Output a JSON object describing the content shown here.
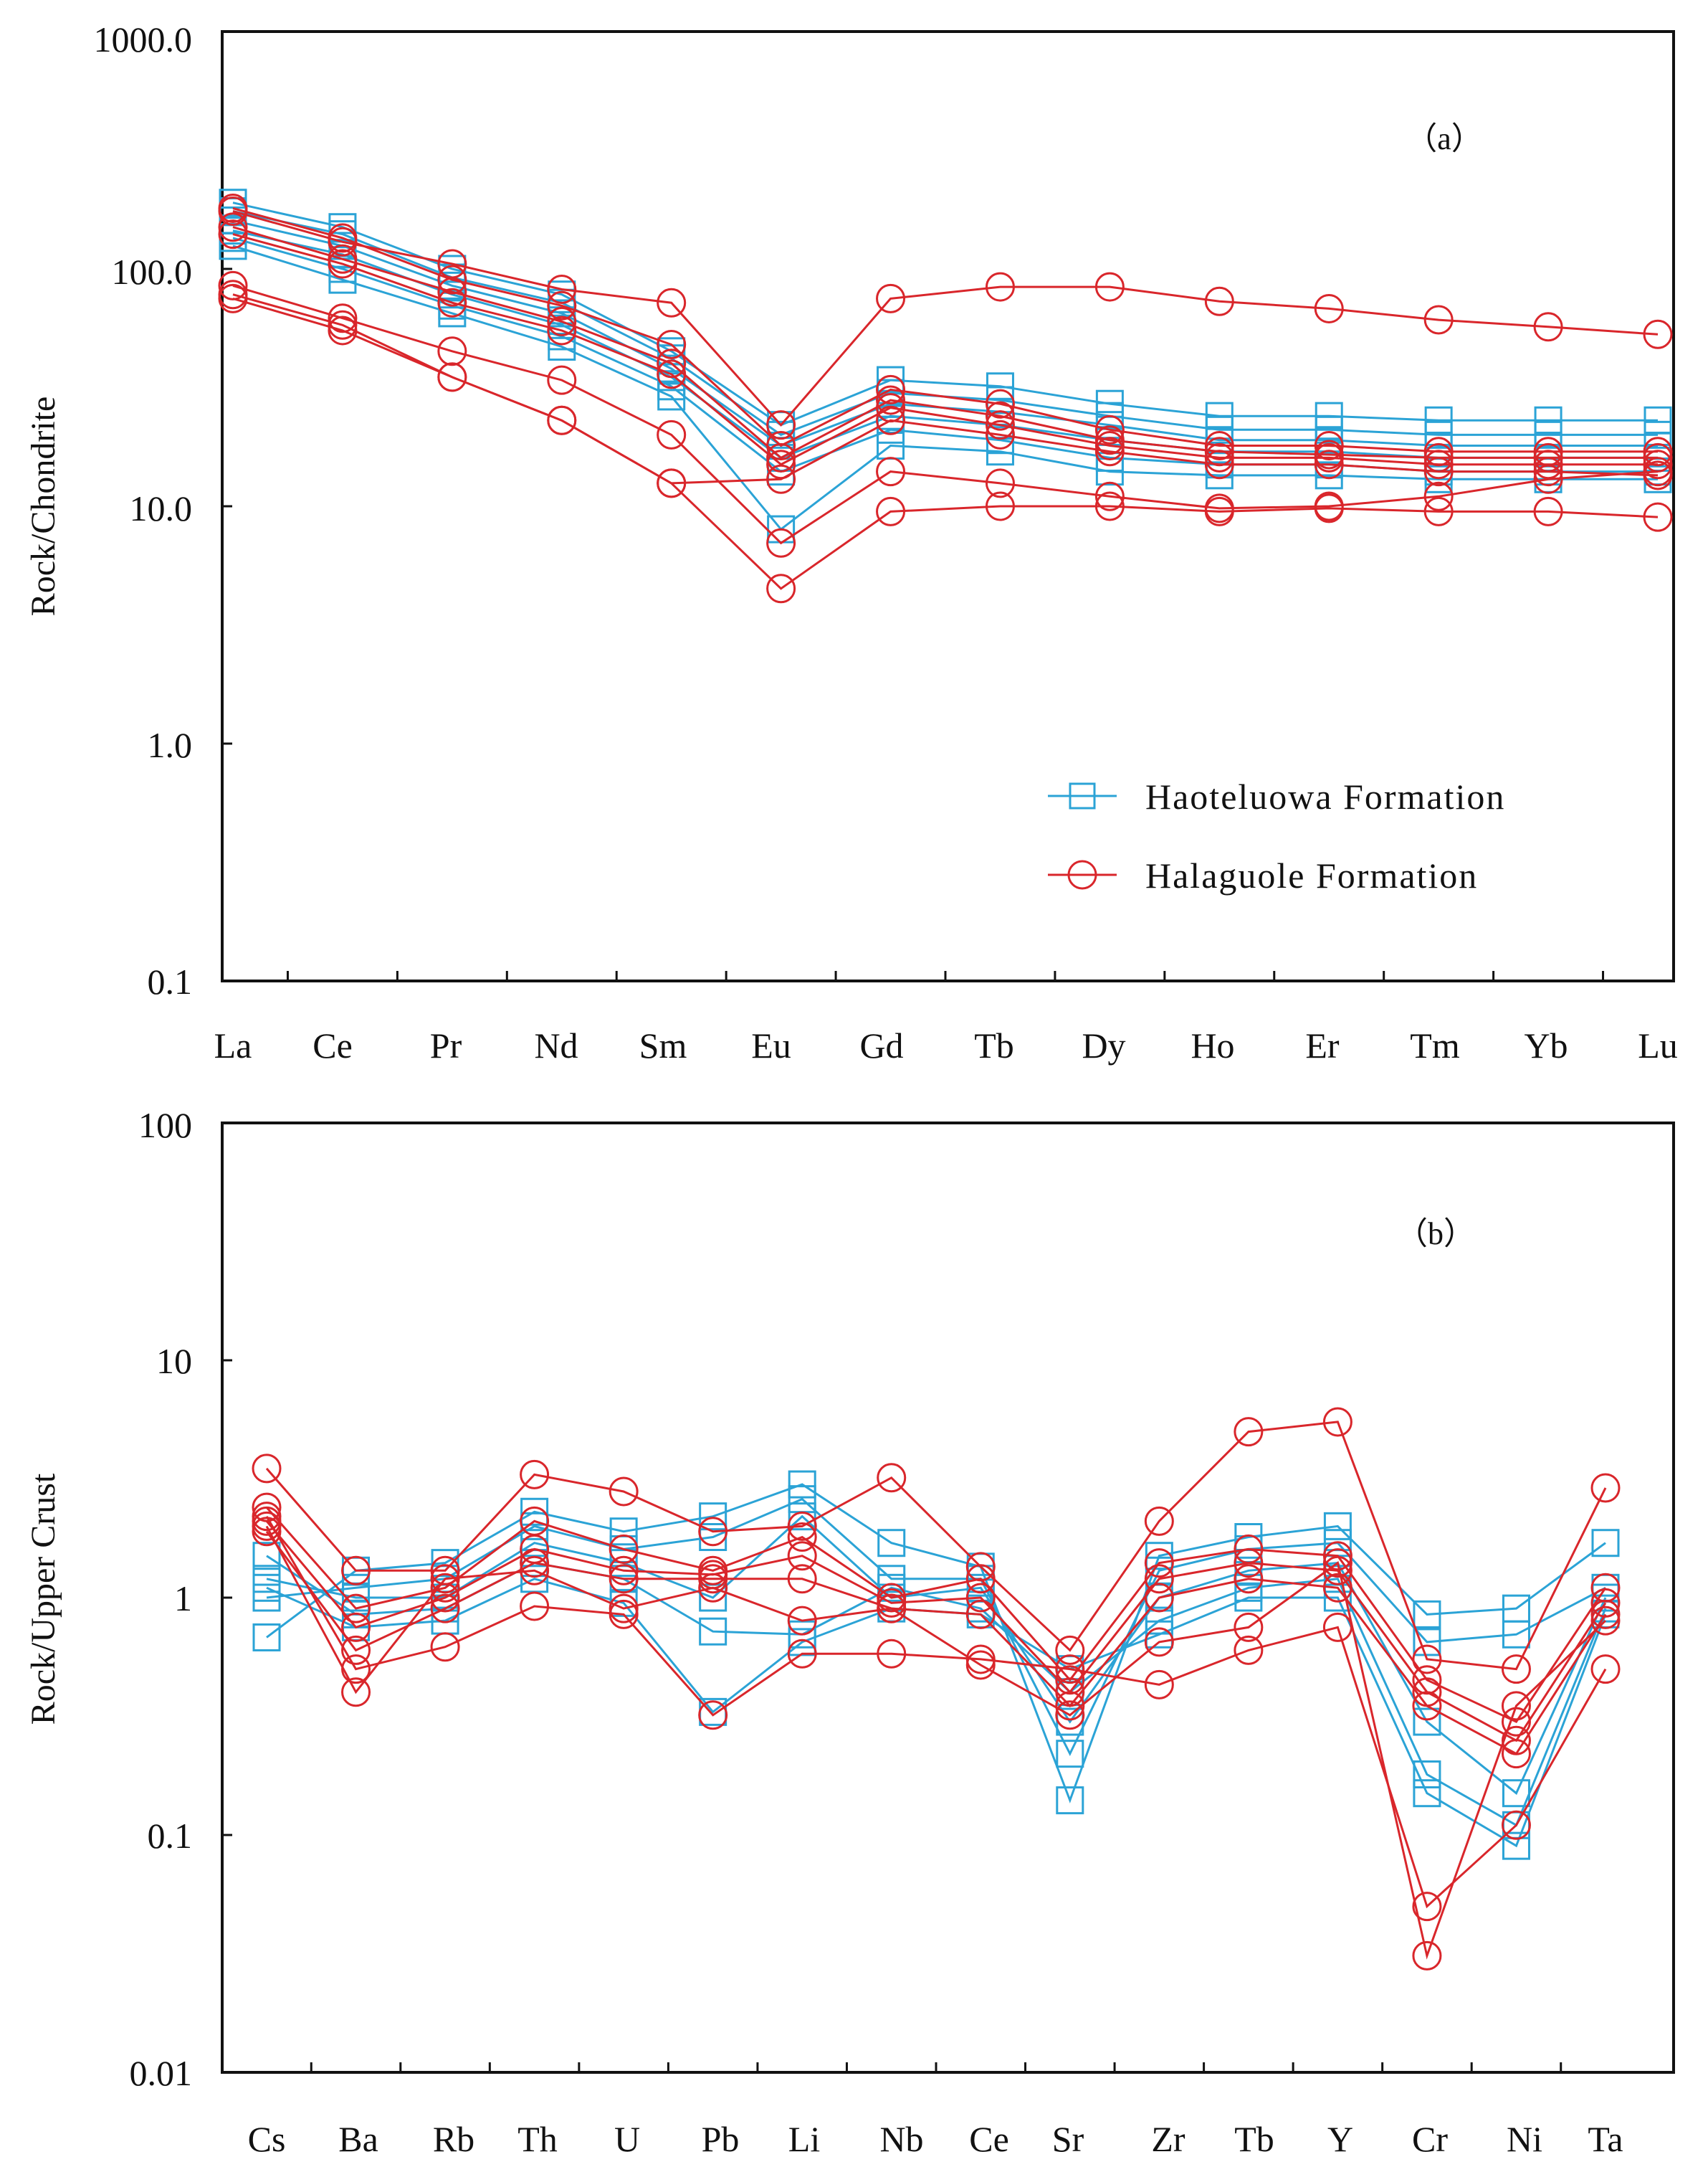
{
  "colors": {
    "haoteluowa": "#2ba3d6",
    "halaguole": "#d9262b",
    "axis": "#111111"
  },
  "chart_data": [
    {
      "type": "line",
      "panel_label": "（a）",
      "ylabel": "Rock/Chondrite",
      "yscale": "log",
      "ylim": [
        0.1,
        1000
      ],
      "yticks": [
        "0.1",
        "1.0",
        "10.0",
        "100.0",
        "1000.0"
      ],
      "categories": [
        "La",
        "Ce",
        "Pr",
        "Nd",
        "Sm",
        "Eu",
        "Gd",
        "Tb",
        "Dy",
        "Ho",
        "Er",
        "Tm",
        "Yb",
        "Lu"
      ],
      "legend": [
        {
          "name": "Haoteluowa Formation",
          "marker": "square",
          "color": "#2ba3d6"
        },
        {
          "name": "Halaguole Formation",
          "marker": "circle",
          "color": "#d9262b"
        }
      ],
      "series": [
        {
          "name": "Haoteluowa Formation",
          "values": [
            190,
            150,
            100,
            78,
            45,
            22,
            34,
            32,
            27,
            24,
            24,
            23,
            23,
            23
          ]
        },
        {
          "name": "Haoteluowa Formation",
          "values": [
            175,
            140,
            92,
            72,
            42,
            20,
            30,
            28,
            24,
            21,
            21,
            20,
            20,
            20
          ]
        },
        {
          "name": "Haoteluowa Formation",
          "values": [
            160,
            125,
            85,
            65,
            38,
            18,
            27,
            25,
            22,
            19,
            19,
            18,
            18,
            18
          ]
        },
        {
          "name": "Haoteluowa Formation",
          "values": [
            145,
            115,
            78,
            58,
            35,
            16,
            24,
            22,
            19,
            17,
            17,
            16,
            16,
            16
          ]
        },
        {
          "name": "Haoteluowa Formation",
          "values": [
            135,
            100,
            70,
            52,
            32,
            14,
            21,
            19,
            16,
            15,
            15,
            14,
            14,
            14
          ]
        },
        {
          "name": "Haoteluowa Formation",
          "values": [
            125,
            90,
            65,
            47,
            29,
            8,
            18,
            17,
            14,
            13.5,
            13.5,
            13,
            13,
            13
          ]
        },
        {
          "name": "Halaguole Formation",
          "values": [
            175,
            130,
            105,
            82,
            72,
            22,
            75,
            84,
            84,
            73,
            68,
            61,
            57,
            53
          ]
        },
        {
          "name": "Halaguole Formation",
          "values": [
            180,
            135,
            90,
            70,
            48,
            18,
            31,
            27,
            21,
            18,
            18,
            17,
            17,
            17
          ]
        },
        {
          "name": "Halaguole Formation",
          "values": [
            150,
            110,
            80,
            60,
            40,
            16,
            28,
            24,
            19,
            17,
            16.5,
            16,
            16,
            16
          ]
        },
        {
          "name": "Halaguole Formation",
          "values": [
            140,
            105,
            72,
            55,
            36,
            15,
            26,
            22,
            18,
            16,
            16,
            15,
            15,
            15
          ]
        },
        {
          "name": "Halaguole Formation",
          "values": [
            85,
            62,
            45,
            34,
            20,
            7,
            14,
            12.5,
            11,
            9.8,
            10,
            11,
            13,
            14
          ]
        },
        {
          "name": "Halaguole Formation",
          "values": [
            78,
            58,
            35,
            23,
            12.5,
            4.5,
            9.5,
            10,
            10,
            9.5,
            9.8,
            9.5,
            9.5,
            9
          ]
        },
        {
          "name": "Halaguole Formation",
          "values": [
            75,
            55,
            35,
            23,
            12.5,
            13,
            23,
            20,
            17,
            15,
            15,
            14,
            14,
            13.5
          ]
        }
      ]
    },
    {
      "type": "line",
      "panel_label": "（b）",
      "ylabel": "Rock/Upper Crust",
      "yscale": "log",
      "ylim": [
        0.01,
        100
      ],
      "yticks": [
        "0.01",
        "0.1",
        "1",
        "10",
        "100"
      ],
      "categories": [
        "Cs",
        "Ba",
        "Rb",
        "Th",
        "U",
        "Pb",
        "Li",
        "Nb",
        "Ce",
        "Sr",
        "Zr",
        "Tb",
        "Y",
        "Cr",
        "Ni",
        "Ta"
      ],
      "series": [
        {
          "name": "Haoteluowa Formation",
          "values": [
            0.68,
            1.3,
            1.4,
            2.3,
            1.9,
            2.2,
            3.0,
            1.7,
            1.35,
            0.14,
            1.5,
            1.8,
            2.0,
            0.85,
            0.9,
            1.7
          ]
        },
        {
          "name": "Haoteluowa Formation",
          "values": [
            1.0,
            1.1,
            1.2,
            2.0,
            1.6,
            1.8,
            2.6,
            1.2,
            1.2,
            0.22,
            1.3,
            1.6,
            1.7,
            0.65,
            0.7,
            1.1
          ]
        },
        {
          "name": "Haoteluowa Formation",
          "values": [
            1.2,
            1.0,
            1.0,
            1.7,
            1.4,
            1.0,
            2.2,
            1.0,
            1.1,
            0.3,
            1.0,
            1.3,
            1.4,
            0.3,
            0.15,
            1.0
          ]
        },
        {
          "name": "Haoteluowa Formation",
          "values": [
            1.5,
            0.85,
            0.9,
            1.4,
            1.2,
            0.72,
            0.7,
            1.1,
            0.9,
            0.4,
            0.8,
            1.1,
            1.2,
            0.18,
            0.11,
            0.9
          ]
        },
        {
          "name": "Haoteluowa Formation",
          "values": [
            1.1,
            0.75,
            0.8,
            1.2,
            0.95,
            0.33,
            0.65,
            0.9,
            0.85,
            0.5,
            0.7,
            1.0,
            1.0,
            0.15,
            0.09,
            0.85
          ]
        },
        {
          "name": "Halaguole Formation",
          "values": [
            3.5,
            1.3,
            1.3,
            3.3,
            2.8,
            1.9,
            2.0,
            3.2,
            1.35,
            0.6,
            2.1,
            5.0,
            5.5,
            0.55,
            0.5,
            2.9
          ]
        },
        {
          "name": "Halaguole Formation",
          "values": [
            2.4,
            0.9,
            1.1,
            2.1,
            1.6,
            1.3,
            1.8,
            1.0,
            1.2,
            0.45,
            1.4,
            1.6,
            1.5,
            0.45,
            0.3,
            1.1
          ]
        },
        {
          "name": "Halaguole Formation",
          "values": [
            2.1,
            0.75,
            1.0,
            1.6,
            1.3,
            1.25,
            1.5,
            0.95,
            1.0,
            0.4,
            1.2,
            1.4,
            1.3,
            0.4,
            0.25,
            0.95
          ]
        },
        {
          "name": "Halaguole Formation",
          "values": [
            1.9,
            0.6,
            0.9,
            1.4,
            1.2,
            1.2,
            1.2,
            0.9,
            0.85,
            0.35,
            1.0,
            1.2,
            1.1,
            0.35,
            0.22,
            0.85
          ]
        },
        {
          "name": "Halaguole Formation",
          "values": [
            2.2,
            0.5,
            0.62,
            0.92,
            0.85,
            0.32,
            0.58,
            0.58,
            0.55,
            0.5,
            0.43,
            0.6,
            0.75,
            0.05,
            0.11,
            0.5
          ]
        },
        {
          "name": "Halaguole Formation",
          "values": [
            2.0,
            0.4,
            1.2,
            1.3,
            0.9,
            1.1,
            0.8,
            0.9,
            0.52,
            0.32,
            0.65,
            0.75,
            1.4,
            0.031,
            0.35,
            0.8
          ]
        }
      ]
    }
  ]
}
